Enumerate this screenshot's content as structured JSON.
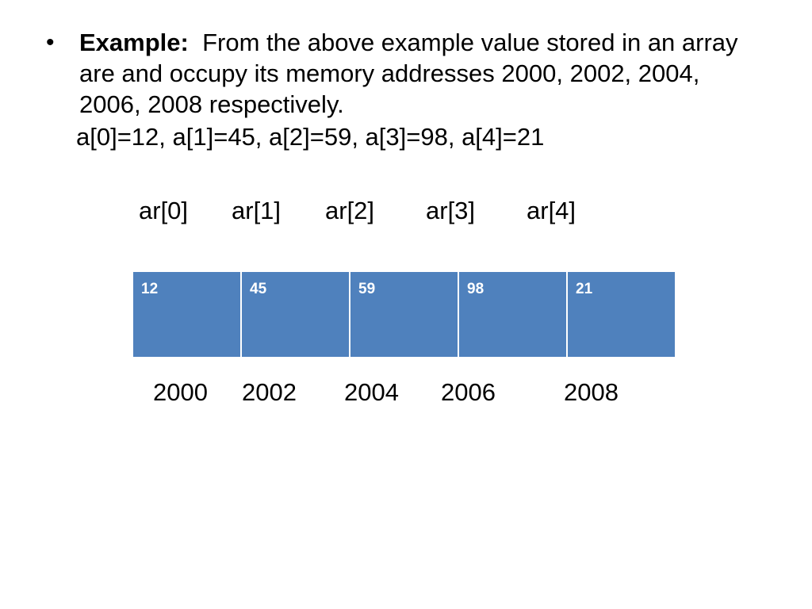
{
  "bullet": {
    "marker": "•",
    "lead": "Example:",
    "text": "From the above example value stored in an array are and occupy its memory addresses 2000, 2002, 2004, 2006, 2008 respectively."
  },
  "values_line": "a[0]=12,  a[1]=45,  a[2]=59,  a[3]=98,  a[4]=21",
  "index_labels": [
    "ar[0]",
    "ar[1]",
    "ar[2]",
    "ar[3]",
    "ar[4]"
  ],
  "cells": [
    "12",
    "45",
    "59",
    "98",
    "21"
  ],
  "addresses": [
    "2000",
    "2002",
    "2004",
    "2006",
    "2008"
  ],
  "colors": {
    "cell_fill": "#4f81bd",
    "cell_text": "#ffffff",
    "cell_divider": "#ffffff"
  }
}
